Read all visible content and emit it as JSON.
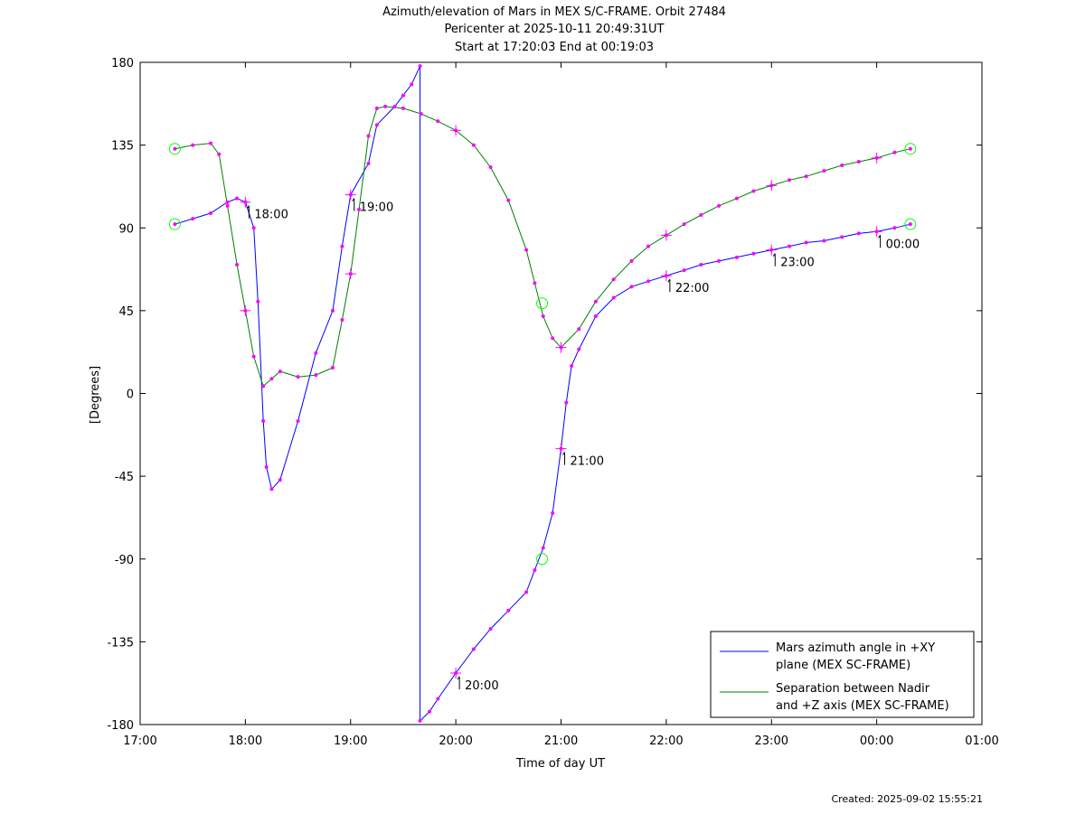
{
  "chart_data": {
    "type": "line",
    "title": [
      "Azimuth/elevation of Mars in MEX S/C-FRAME.  Orbit 27484",
      "Pericenter at 2025-10-11 20:49:31UT",
      "Start at 17:20:03 End at 00:19:03"
    ],
    "xlabel": "Time of day UT",
    "ylabel": "[Degrees]",
    "xlim": [
      17,
      25
    ],
    "ylim": [
      -180,
      180
    ],
    "x_ticks": [
      {
        "v": 17,
        "label": "17:00"
      },
      {
        "v": 18,
        "label": "18:00"
      },
      {
        "v": 19,
        "label": "19:00"
      },
      {
        "v": 20,
        "label": "20:00"
      },
      {
        "v": 21,
        "label": "21:00"
      },
      {
        "v": 22,
        "label": "22:00"
      },
      {
        "v": 23,
        "label": "23:00"
      },
      {
        "v": 24,
        "label": "00:00"
      },
      {
        "v": 25,
        "label": "01:00"
      }
    ],
    "y_ticks": [
      {
        "v": 180,
        "label": "180"
      },
      {
        "v": 135,
        "label": "135"
      },
      {
        "v": 90,
        "label": "90"
      },
      {
        "v": 45,
        "label": "45"
      },
      {
        "v": 0,
        "label": "0"
      },
      {
        "v": -45,
        "label": "-45"
      },
      {
        "v": -90,
        "label": "-90"
      },
      {
        "v": -135,
        "label": "-135"
      },
      {
        "v": -180,
        "label": "-180"
      }
    ],
    "legend_position": "bottom-right",
    "series": [
      {
        "name": "Mars azimuth angle in +XY plane (MEX SC-FRAME)",
        "legend_lines": [
          "Mars azimuth angle in +XY",
          "plane (MEX SC-FRAME)"
        ],
        "color": "#0000ff",
        "segments": [
          [
            [
              17.33,
              92
            ],
            [
              17.5,
              95
            ],
            [
              17.67,
              98
            ],
            [
              17.83,
              104
            ],
            [
              17.92,
              106
            ],
            [
              18.0,
              104
            ],
            [
              18.08,
              90
            ],
            [
              18.12,
              50
            ],
            [
              18.17,
              -15
            ],
            [
              18.2,
              -40
            ],
            [
              18.25,
              -52
            ],
            [
              18.33,
              -47
            ],
            [
              18.5,
              -15
            ],
            [
              18.67,
              22
            ],
            [
              18.83,
              45
            ],
            [
              18.92,
              80
            ],
            [
              19.0,
              108
            ],
            [
              19.17,
              125
            ],
            [
              19.25,
              146
            ],
            [
              19.42,
              156
            ],
            [
              19.5,
              162
            ],
            [
              19.58,
              168
            ],
            [
              19.66,
              178
            ]
          ],
          [
            [
              19.66,
              -178
            ],
            [
              19.75,
              -173
            ],
            [
              19.83,
              -166
            ],
            [
              20.0,
              -152
            ],
            [
              20.17,
              -139
            ],
            [
              20.33,
              -128
            ],
            [
              20.5,
              -118
            ],
            [
              20.67,
              -108
            ],
            [
              20.75,
              -96
            ],
            [
              20.83,
              -84
            ],
            [
              20.92,
              -65
            ],
            [
              21.0,
              -30
            ],
            [
              21.05,
              -5
            ],
            [
              21.1,
              15
            ],
            [
              21.17,
              24
            ],
            [
              21.33,
              42
            ],
            [
              21.5,
              52
            ],
            [
              21.67,
              58
            ],
            [
              21.83,
              61
            ],
            [
              22.0,
              64
            ],
            [
              22.17,
              67
            ],
            [
              22.33,
              70
            ],
            [
              22.5,
              72
            ],
            [
              22.67,
              74
            ],
            [
              22.83,
              76
            ],
            [
              23.0,
              78
            ],
            [
              23.17,
              80
            ],
            [
              23.33,
              82
            ],
            [
              23.5,
              83
            ],
            [
              23.67,
              85
            ],
            [
              23.83,
              87
            ],
            [
              24.0,
              88
            ],
            [
              24.17,
              90
            ],
            [
              24.32,
              92
            ]
          ]
        ]
      },
      {
        "name": "Separation between Nadir and +Z axis (MEX SC-FRAME)",
        "legend_lines": [
          "Separation between Nadir",
          "and +Z axis (MEX SC-FRAME)"
        ],
        "color": "#008000",
        "segments": [
          [
            [
              17.33,
              133
            ],
            [
              17.5,
              135
            ],
            [
              17.67,
              136
            ],
            [
              17.75,
              130
            ],
            [
              17.83,
              102
            ],
            [
              17.92,
              70
            ],
            [
              18.0,
              45
            ],
            [
              18.08,
              20
            ],
            [
              18.17,
              4
            ],
            [
              18.25,
              8
            ],
            [
              18.33,
              12
            ],
            [
              18.5,
              9
            ],
            [
              18.67,
              10
            ],
            [
              18.83,
              14
            ],
            [
              18.92,
              40
            ],
            [
              19.0,
              65
            ],
            [
              19.08,
              100
            ],
            [
              19.17,
              140
            ],
            [
              19.25,
              155
            ],
            [
              19.33,
              156
            ],
            [
              19.5,
              155
            ],
            [
              19.67,
              152
            ],
            [
              19.83,
              148
            ],
            [
              20.0,
              143
            ],
            [
              20.17,
              135
            ],
            [
              20.33,
              123
            ],
            [
              20.5,
              105
            ],
            [
              20.67,
              78
            ],
            [
              20.75,
              60
            ],
            [
              20.83,
              42
            ],
            [
              20.92,
              30
            ],
            [
              21.0,
              25
            ],
            [
              21.17,
              35
            ],
            [
              21.33,
              50
            ],
            [
              21.5,
              62
            ],
            [
              21.67,
              72
            ],
            [
              21.83,
              80
            ],
            [
              22.0,
              86
            ],
            [
              22.17,
              92
            ],
            [
              22.33,
              97
            ],
            [
              22.5,
              102
            ],
            [
              22.67,
              106
            ],
            [
              22.83,
              110
            ],
            [
              23.0,
              113
            ],
            [
              23.17,
              116
            ],
            [
              23.33,
              118
            ],
            [
              23.5,
              121
            ],
            [
              23.67,
              124
            ],
            [
              23.83,
              126
            ],
            [
              24.0,
              128
            ],
            [
              24.17,
              131
            ],
            [
              24.32,
              133
            ]
          ]
        ]
      }
    ],
    "hour_markers": [
      {
        "series": 0,
        "x": 18.0,
        "y": 104,
        "label": "18:00"
      },
      {
        "series": 0,
        "x": 19.0,
        "y": 108,
        "label": "19:00"
      },
      {
        "series": 0,
        "x": 20.0,
        "y": -152,
        "label": "20:00"
      },
      {
        "series": 0,
        "x": 21.0,
        "y": -30,
        "label": "21:00"
      },
      {
        "series": 0,
        "x": 22.0,
        "y": 64,
        "label": "22:00"
      },
      {
        "series": 0,
        "x": 23.0,
        "y": 78,
        "label": "23:00"
      },
      {
        "series": 0,
        "x": 24.0,
        "y": 88,
        "label": "00:00"
      },
      {
        "series": 1,
        "x": 18.0,
        "y": 45,
        "label": ""
      },
      {
        "series": 1,
        "x": 19.0,
        "y": 65,
        "label": ""
      },
      {
        "series": 1,
        "x": 20.0,
        "y": 143,
        "label": ""
      },
      {
        "series": 1,
        "x": 21.0,
        "y": 25,
        "label": ""
      },
      {
        "series": 1,
        "x": 22.0,
        "y": 86,
        "label": ""
      },
      {
        "series": 1,
        "x": 23.0,
        "y": 113,
        "label": ""
      },
      {
        "series": 1,
        "x": 24.0,
        "y": 128,
        "label": ""
      }
    ],
    "event_circles": [
      {
        "x": 17.33,
        "y": 133
      },
      {
        "x": 17.33,
        "y": 92
      },
      {
        "x": 24.32,
        "y": 133
      },
      {
        "x": 24.32,
        "y": 92
      },
      {
        "x": 20.82,
        "y": 49
      },
      {
        "x": 20.82,
        "y": -90
      }
    ],
    "sample_dot_color": "#ff00ff",
    "circle_color": "#00ff00",
    "created": "Created: 2025-09-02 15:55:21"
  }
}
